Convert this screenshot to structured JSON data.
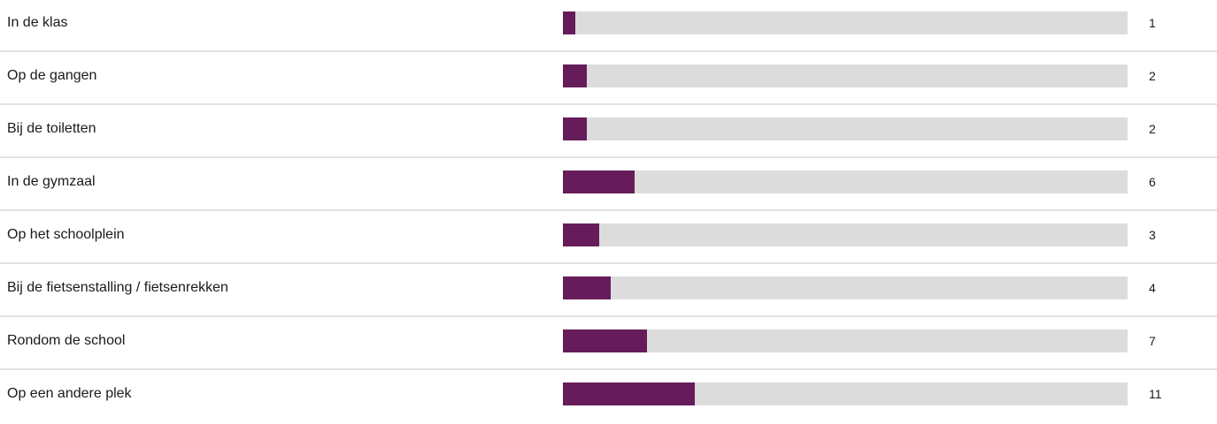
{
  "chart_data": {
    "type": "bar",
    "orientation": "horizontal",
    "categories": [
      "In de klas",
      "Op de gangen",
      "Bij de toiletten",
      "In de gymzaal",
      "Op het schoolplein",
      "Bij de fietsenstalling / fietsenrekken",
      "Rondom de school",
      "Op een andere plek"
    ],
    "values": [
      1,
      2,
      2,
      6,
      3,
      4,
      7,
      11
    ],
    "xlim": [
      0,
      47
    ],
    "colors": {
      "bar": "#661c5b",
      "track": "#dcdcdc"
    }
  }
}
